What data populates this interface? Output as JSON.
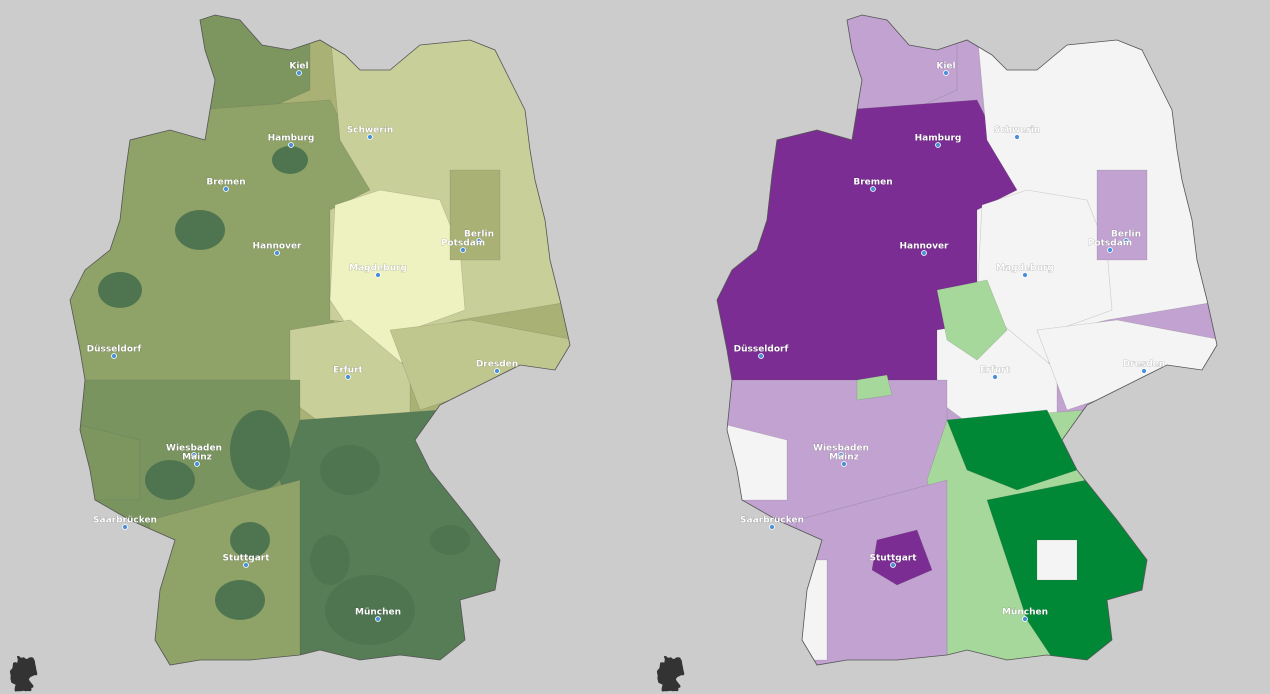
{
  "maps": {
    "cities": [
      "Kiel",
      "Hamburg",
      "Schwerin",
      "Bremen",
      "Berlin",
      "Potsdam",
      "Hannover",
      "Magdeburg",
      "Düsseldorf",
      "Erfurt",
      "Dresden",
      "Wiesbaden",
      "Mainz",
      "Saarbrücken",
      "Stuttgart",
      "München"
    ]
  }
}
